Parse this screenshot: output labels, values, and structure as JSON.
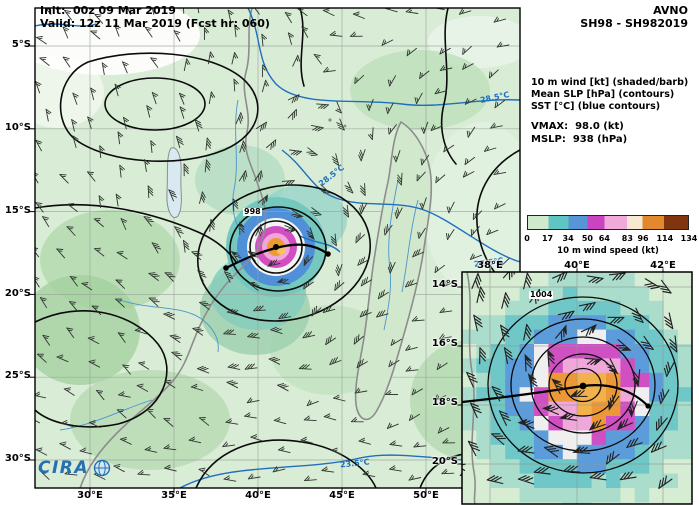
{
  "header": {
    "init_label": "Init:  00z 09 Mar 2019",
    "valid_label": "Valid: 12z 11 Mar 2019 (Fcst hr: 060)",
    "model": "AVNO",
    "storm_id": "SH98 - SH982019"
  },
  "legend": {
    "line1": "10 m wind [kt] (shaded/barb)",
    "line2": "Mean SLP [hPa] (contours)",
    "line3": "SST [°C] (blue contours)",
    "vmax": "VMAX:  98.0 (kt)",
    "mslp": "MSLP:  938 (hPa)"
  },
  "colorbar": {
    "label": "10 m wind speed (kt)"
  },
  "main_map": {
    "lat_labels": [
      "5°S",
      "10°S",
      "15°S",
      "20°S",
      "25°S",
      "30°S"
    ],
    "lon_labels": [
      "30°E",
      "35°E",
      "40°E",
      "45°E",
      "50°E"
    ],
    "contour_labels": {
      "slp_998": "998",
      "sst_285_a": "28.5°C",
      "sst_285_b": "28.5°C",
      "sst_285_c": "28.5°C",
      "sst_235": "23.5°C"
    }
  },
  "inset_map": {
    "lon_labels": [
      "38°E",
      "40°E",
      "42°E"
    ],
    "lat_labels": [
      "14°S",
      "16°S",
      "18°S",
      "20°S"
    ],
    "contour_labels": {
      "slp_1004": "1004"
    }
  },
  "logo": {
    "text": "CIRA"
  },
  "chart_data": {
    "type": "heatmap",
    "title": "AVNO SH98 - SH982019",
    "model": "AVNO",
    "storm": "SH98 - SH982019",
    "init": "00z 09 Mar 2019",
    "valid": "12z 11 Mar 2019",
    "fcst_hr": 60,
    "vmax_kt": 98.0,
    "mslp_hpa": 938,
    "fields": [
      {
        "name": "10 m wind",
        "units": "kt",
        "style": "shaded + barbs"
      },
      {
        "name": "Mean SLP",
        "units": "hPa",
        "style": "black contours"
      },
      {
        "name": "SST",
        "units": "°C",
        "style": "blue contours"
      }
    ],
    "colorbar": {
      "label": "10 m wind speed (kt)",
      "ticks": [
        0,
        17,
        34,
        50,
        64,
        83,
        96,
        114,
        134
      ],
      "colors": [
        "#cfe9cd",
        "#5fc4c4",
        "#5796d6",
        "#c944be",
        "#f0a9d8",
        "#f6e8d2",
        "#e2882e",
        "#80350e"
      ]
    },
    "main_map": {
      "lon_ticks_deg_e": [
        30,
        35,
        40,
        45,
        50
      ],
      "lat_ticks_deg_s": [
        5,
        10,
        15,
        20,
        25,
        30
      ],
      "slp_contour_labels_hpa": [
        998
      ],
      "sst_contour_labels_c": [
        28.5,
        28.5,
        28.5,
        23.5
      ]
    },
    "inset_map": {
      "lon_ticks_deg_e": [
        38,
        40,
        42
      ],
      "lat_ticks_deg_s": [
        14,
        16,
        18,
        20
      ],
      "slp_contour_labels_hpa": [
        1004
      ]
    }
  }
}
